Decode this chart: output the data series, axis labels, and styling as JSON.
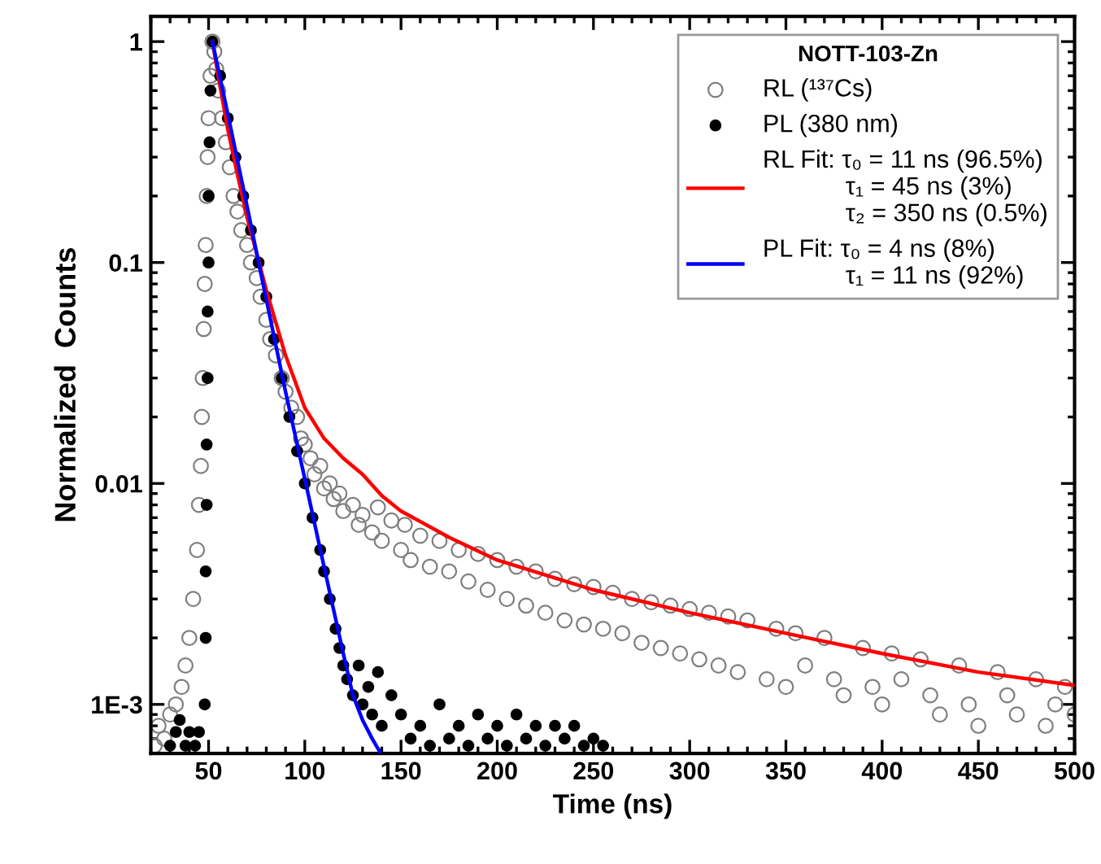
{
  "chart_data": {
    "type": "scatter",
    "xlabel": "Time (ns)",
    "ylabel": "Normalized  Counts",
    "legend_title": "NOTT-103-Zn",
    "log": "y",
    "xlim": [
      20,
      500
    ],
    "ylim": [
      0.0006,
      1.3
    ],
    "xticks": [
      50,
      100,
      150,
      200,
      250,
      300,
      350,
      400,
      450,
      500
    ],
    "yticks": [
      {
        "value": 0.001,
        "label": "1E-3"
      },
      0.01,
      0.1,
      1
    ],
    "grid": false,
    "legend": "top right",
    "series": [
      {
        "name": "RL (¹³⁷Cs)",
        "marker": "circle",
        "color": "#7f7f7f",
        "x": [
          22,
          24,
          27,
          30,
          33,
          36,
          38,
          40,
          42,
          44,
          45,
          46,
          46.5,
          47,
          47.5,
          48,
          48.5,
          49,
          49.5,
          50,
          51,
          52,
          53,
          54,
          55,
          57,
          59,
          61,
          63,
          65,
          67,
          70,
          72,
          75,
          77,
          80,
          82,
          85,
          88,
          90,
          93,
          96,
          98,
          100,
          103,
          105,
          108,
          110,
          113,
          115,
          118,
          120,
          125,
          128,
          130,
          135,
          138,
          140,
          145,
          150,
          152,
          155,
          160,
          165,
          170,
          175,
          180,
          185,
          190,
          195,
          200,
          205,
          210,
          215,
          220,
          225,
          230,
          235,
          240,
          245,
          250,
          255,
          260,
          265,
          270,
          275,
          280,
          285,
          290,
          295,
          300,
          305,
          310,
          315,
          320,
          325,
          330,
          340,
          345,
          350,
          355,
          360,
          370,
          375,
          380,
          390,
          395,
          400,
          405,
          410,
          420,
          425,
          430,
          440,
          445,
          450,
          460,
          465,
          470,
          480,
          485,
          490,
          495,
          500
        ],
        "values": [
          0.00065,
          0.0008,
          0.0007,
          0.0009,
          0.001,
          0.0012,
          0.0015,
          0.002,
          0.003,
          0.005,
          0.008,
          0.012,
          0.02,
          0.03,
          0.05,
          0.08,
          0.12,
          0.2,
          0.3,
          0.45,
          0.7,
          1,
          0.9,
          0.75,
          0.6,
          0.45,
          0.35,
          0.27,
          0.2,
          0.17,
          0.14,
          0.12,
          0.1,
          0.085,
          0.07,
          0.055,
          0.045,
          0.038,
          0.03,
          0.026,
          0.022,
          0.02,
          0.016,
          0.015,
          0.013,
          0.011,
          0.012,
          0.0095,
          0.01,
          0.0085,
          0.009,
          0.0075,
          0.008,
          0.0065,
          0.0072,
          0.006,
          0.0078,
          0.0055,
          0.0068,
          0.005,
          0.0065,
          0.0045,
          0.0058,
          0.0042,
          0.0055,
          0.004,
          0.005,
          0.0036,
          0.0048,
          0.0033,
          0.0045,
          0.003,
          0.0042,
          0.0028,
          0.004,
          0.0026,
          0.0037,
          0.0024,
          0.0035,
          0.0023,
          0.0034,
          0.0022,
          0.0032,
          0.0021,
          0.003,
          0.0019,
          0.0029,
          0.0018,
          0.0028,
          0.0017,
          0.0027,
          0.0016,
          0.0026,
          0.0015,
          0.0025,
          0.0014,
          0.0024,
          0.0013,
          0.0022,
          0.0012,
          0.0021,
          0.0015,
          0.002,
          0.0013,
          0.0011,
          0.0018,
          0.0012,
          0.001,
          0.0017,
          0.0013,
          0.0016,
          0.0011,
          0.0009,
          0.0015,
          0.001,
          0.0008,
          0.0014,
          0.0011,
          0.0009,
          0.0013,
          0.0008,
          0.001,
          0.0012,
          0.0009
        ]
      },
      {
        "name": "PL (380 nm)",
        "marker": "circle",
        "color": "#000000",
        "x": [
          30,
          33,
          35,
          38,
          40,
          43,
          45,
          48,
          48.5,
          48.5,
          49,
          49,
          49.5,
          49.5,
          50,
          50,
          50.5,
          51,
          52,
          56,
          60,
          64,
          68,
          72,
          76,
          80,
          84,
          88,
          92,
          96,
          100,
          104,
          108,
          110,
          113,
          116,
          118,
          120,
          122,
          125,
          128,
          130,
          133,
          135,
          138,
          140,
          145,
          150,
          155,
          160,
          165,
          170,
          175,
          180,
          185,
          190,
          195,
          200,
          205,
          210,
          215,
          220,
          225,
          230,
          235,
          240,
          245,
          250,
          255
        ],
        "values": [
          0.00065,
          0.00075,
          0.00085,
          0.00065,
          0.00075,
          0.00065,
          0.00075,
          0.001,
          0.002,
          0.004,
          0.008,
          0.015,
          0.03,
          0.06,
          0.1,
          0.2,
          0.35,
          0.6,
          1,
          0.7,
          0.45,
          0.3,
          0.2,
          0.14,
          0.1,
          0.07,
          0.045,
          0.03,
          0.02,
          0.014,
          0.01,
          0.007,
          0.005,
          0.004,
          0.003,
          0.0022,
          0.0018,
          0.0015,
          0.0013,
          0.0011,
          0.0015,
          0.001,
          0.0012,
          0.0009,
          0.0014,
          0.0008,
          0.0011,
          0.0009,
          0.0007,
          0.0008,
          0.00065,
          0.001,
          0.0007,
          0.0008,
          0.00065,
          0.0009,
          0.0007,
          0.0008,
          0.00065,
          0.0009,
          0.0007,
          0.0008,
          0.00065,
          0.0008,
          0.0007,
          0.0008,
          0.00065,
          0.0007,
          0.00065
        ]
      },
      {
        "name": "RL Fit: τ₀ = 11 ns (96.5%)\n            τ₁ = 45 ns (3%)\n            τ₂ = 350 ns (0.5%)",
        "type": "line",
        "marker": "none",
        "line_style": "solid",
        "color": "#ff0000",
        "x": [
          52,
          55,
          60,
          65,
          70,
          75,
          80,
          90,
          100,
          110,
          120,
          130,
          140,
          150,
          175,
          200,
          250,
          300,
          350,
          400,
          450,
          500
        ],
        "values": [
          1,
          0.7,
          0.4,
          0.25,
          0.16,
          0.11,
          0.075,
          0.038,
          0.022,
          0.016,
          0.013,
          0.011,
          0.0088,
          0.0075,
          0.0057,
          0.0045,
          0.0033,
          0.0026,
          0.0021,
          0.0017,
          0.0014,
          0.00122
        ]
      },
      {
        "name": "PL Fit: τ₀ = 4 ns (8%)\n            τ₁ = 11 ns (92%)",
        "type": "line",
        "marker": "none",
        "line_style": "solid",
        "color": "#0000ff",
        "x": [
          52,
          60,
          70,
          76,
          80,
          90,
          100,
          110,
          120,
          125,
          130,
          135,
          139
        ],
        "values": [
          1,
          0.47,
          0.18,
          0.1,
          0.068,
          0.026,
          0.0105,
          0.0042,
          0.0017,
          0.0011,
          0.00085,
          0.0007,
          0.00061
        ]
      }
    ]
  }
}
